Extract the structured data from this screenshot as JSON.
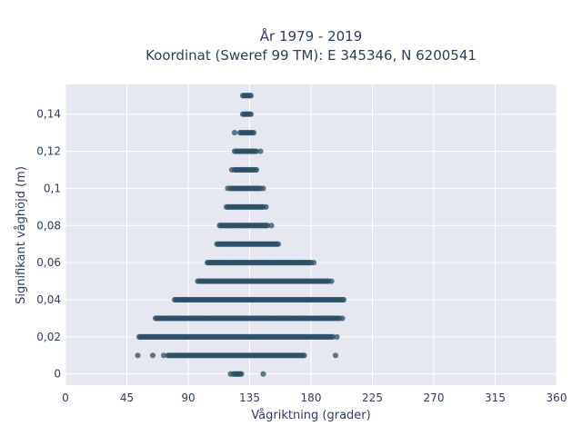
{
  "chart_data": {
    "type": "scatter",
    "title_line1": "År 1979 - 2019",
    "title_line2": "Koordinat (Sweref 99 TM): E 345346, N 6200541",
    "xlabel": "Vågriktning (grader)",
    "ylabel": "Signifikant våghöjd (m)",
    "xlim": [
      0,
      360
    ],
    "ylim": [
      -0.006,
      0.156
    ],
    "x_ticks": [
      0,
      45,
      90,
      135,
      180,
      225,
      270,
      315,
      360
    ],
    "x_tick_labels": [
      "0",
      "45",
      "90",
      "135",
      "180",
      "225",
      "270",
      "315",
      "360"
    ],
    "y_ticks": [
      0,
      0.02,
      0.04,
      0.06,
      0.08,
      0.1,
      0.12,
      0.14
    ],
    "y_tick_labels": [
      "0",
      "0,02",
      "0,04",
      "0,06",
      "0,08",
      "0,1",
      "0,12",
      "0,14"
    ],
    "grid": true,
    "marker_color": "#2f4f66",
    "plot_bg": "#e5e8f0",
    "bands": [
      {
        "y": 0.0,
        "x_min": 123,
        "x_max": 129,
        "outliers": [
          121,
          126,
          145
        ]
      },
      {
        "y": 0.01,
        "x_min": 75,
        "x_max": 175,
        "outliers": [
          53,
          64,
          72,
          198
        ]
      },
      {
        "y": 0.02,
        "x_min": 54,
        "x_max": 196,
        "outliers": [
          199
        ]
      },
      {
        "y": 0.03,
        "x_min": 66,
        "x_max": 201,
        "outliers": [
          203
        ]
      },
      {
        "y": 0.04,
        "x_min": 80,
        "x_max": 203,
        "outliers": [
          204
        ]
      },
      {
        "y": 0.05,
        "x_min": 98,
        "x_max": 193,
        "outliers": [
          97,
          195
        ]
      },
      {
        "y": 0.06,
        "x_min": 104,
        "x_max": 180,
        "outliers": [
          182
        ]
      },
      {
        "y": 0.07,
        "x_min": 111,
        "x_max": 155,
        "outliers": [
          156
        ]
      },
      {
        "y": 0.08,
        "x_min": 113,
        "x_max": 148,
        "outliers": [
          151
        ]
      },
      {
        "y": 0.09,
        "x_min": 118,
        "x_max": 145,
        "outliers": [
          147
        ]
      },
      {
        "y": 0.1,
        "x_min": 121,
        "x_max": 143,
        "outliers": [
          119,
          145
        ]
      },
      {
        "y": 0.11,
        "x_min": 124,
        "x_max": 140,
        "outliers": [
          122
        ]
      },
      {
        "y": 0.12,
        "x_min": 124,
        "x_max": 140,
        "outliers": [
          143
        ]
      },
      {
        "y": 0.13,
        "x_min": 128,
        "x_max": 138,
        "outliers": [
          124
        ]
      },
      {
        "y": 0.14,
        "x_min": 130,
        "x_max": 136,
        "outliers": []
      },
      {
        "y": 0.15,
        "x_min": 130,
        "x_max": 136,
        "outliers": []
      }
    ]
  }
}
